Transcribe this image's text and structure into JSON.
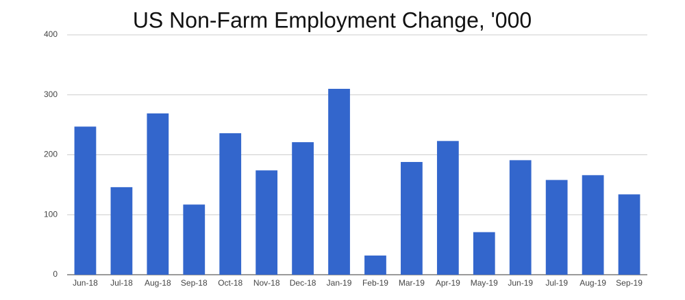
{
  "chart_data": {
    "type": "bar",
    "title": "US Non-Farm Employment Change, '000",
    "categories": [
      "Jun-18",
      "Jul-18",
      "Aug-18",
      "Sep-18",
      "Oct-18",
      "Nov-18",
      "Dec-18",
      "Jan-19",
      "Feb-19",
      "Mar-19",
      "Apr-19",
      "May-19",
      "Jun-19",
      "Jul-19",
      "Aug-19",
      "Sep-19"
    ],
    "values": [
      247,
      146,
      269,
      117,
      236,
      174,
      221,
      310,
      32,
      188,
      223,
      71,
      191,
      158,
      166,
      134
    ],
    "color": "#3366cc",
    "ylim": [
      0,
      400
    ],
    "yticks": [
      0,
      100,
      200,
      300,
      400
    ],
    "grid": true
  }
}
